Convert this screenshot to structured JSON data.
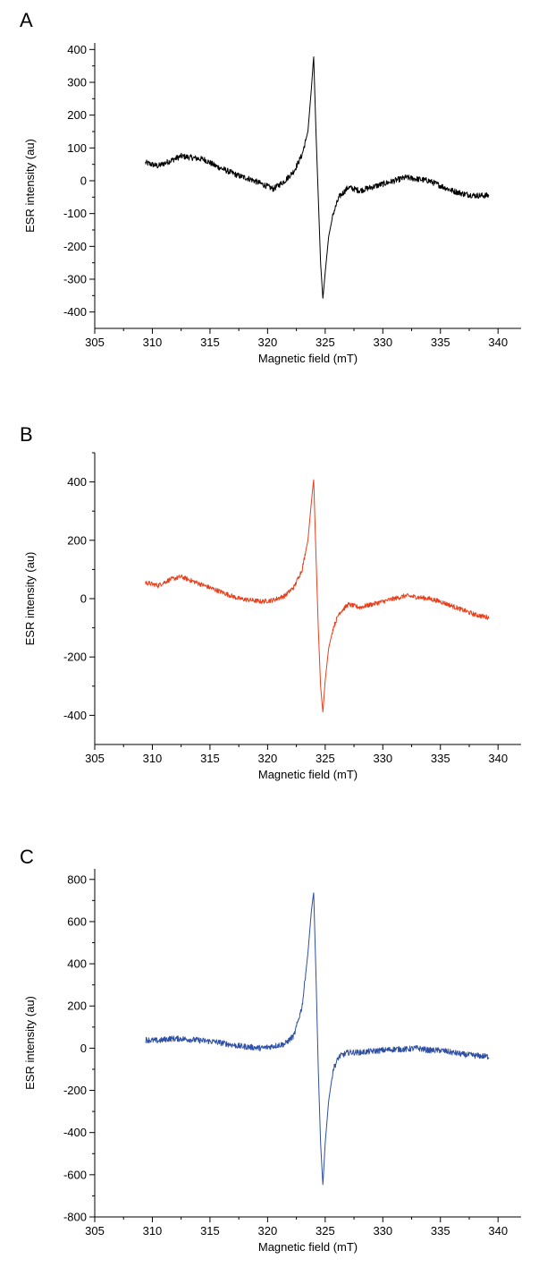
{
  "chart_data": [
    {
      "type": "line",
      "panel_label": "A",
      "xlabel": "Magnetic field (mT)",
      "ylabel": "ESR intensity (au)",
      "xlim": [
        305,
        342
      ],
      "ylim": [
        -450,
        420
      ],
      "xticks": [
        305,
        310,
        315,
        320,
        325,
        330,
        335,
        340
      ],
      "yticks": [
        -400,
        -300,
        -200,
        -100,
        0,
        100,
        200,
        300,
        400
      ],
      "grid": false,
      "series": [
        {
          "color": "#000000",
          "x": [
            309.4,
            310.5,
            311.5,
            312.5,
            313.5,
            314.5,
            315.5,
            316.5,
            317.5,
            318.5,
            319.5,
            320.5,
            321.5,
            322.3,
            323.0,
            323.5,
            323.8,
            324.0,
            324.2,
            324.4,
            324.6,
            324.8,
            325.0,
            325.3,
            325.7,
            326.2,
            327.0,
            328.0,
            329.0,
            330.0,
            331.0,
            332.0,
            333.0,
            334.0,
            335.0,
            336.0,
            337.0,
            338.0,
            339.2
          ],
          "y": [
            55,
            45,
            60,
            75,
            70,
            65,
            45,
            30,
            15,
            5,
            -10,
            -25,
            0,
            30,
            80,
            150,
            280,
            380,
            150,
            -50,
            -250,
            -360,
            -280,
            -170,
            -100,
            -50,
            -20,
            -30,
            -20,
            -10,
            0,
            10,
            5,
            0,
            -15,
            -30,
            -40,
            -45,
            -45
          ],
          "noise": 9
        }
      ]
    },
    {
      "type": "line",
      "panel_label": "B",
      "xlabel": "Magnetic field (mT)",
      "ylabel": "ESR intensity (au)",
      "xlim": [
        305,
        342
      ],
      "ylim": [
        -500,
        500
      ],
      "xticks": [
        305,
        310,
        315,
        320,
        325,
        330,
        335,
        340
      ],
      "yticks": [
        -400,
        -200,
        0,
        200,
        400
      ],
      "grid": false,
      "series": [
        {
          "color": "#e8401c",
          "x": [
            309.4,
            310.5,
            311.5,
            312.5,
            313.5,
            314.5,
            315.5,
            316.5,
            317.5,
            318.5,
            319.5,
            320.5,
            321.5,
            322.3,
            323.0,
            323.5,
            323.8,
            324.0,
            324.2,
            324.4,
            324.6,
            324.8,
            325.0,
            325.3,
            325.7,
            326.2,
            327.0,
            328.0,
            329.0,
            330.0,
            331.0,
            332.0,
            333.0,
            334.0,
            335.0,
            336.0,
            337.0,
            338.0,
            339.2
          ],
          "y": [
            55,
            45,
            65,
            75,
            60,
            45,
            30,
            15,
            0,
            -5,
            -10,
            -5,
            10,
            40,
            100,
            200,
            330,
            410,
            150,
            -100,
            -300,
            -390,
            -280,
            -170,
            -100,
            -50,
            -20,
            -30,
            -20,
            -10,
            0,
            10,
            5,
            0,
            -10,
            -25,
            -40,
            -55,
            -65
          ],
          "noise": 8
        }
      ]
    },
    {
      "type": "line",
      "panel_label": "C",
      "xlabel": "Magnetic field (mT)",
      "ylabel": "ESR intensity (au)",
      "xlim": [
        305,
        342
      ],
      "ylim": [
        -800,
        850
      ],
      "xticks": [
        305,
        310,
        315,
        320,
        325,
        330,
        335,
        340
      ],
      "yticks": [
        -800,
        -600,
        -400,
        -200,
        0,
        200,
        400,
        600,
        800
      ],
      "grid": false,
      "series": [
        {
          "color": "#2e4fa3",
          "x": [
            309.4,
            310.5,
            311.5,
            312.5,
            313.5,
            314.5,
            315.5,
            316.5,
            317.5,
            318.5,
            319.5,
            320.5,
            321.5,
            322.3,
            323.0,
            323.5,
            323.8,
            324.0,
            324.2,
            324.4,
            324.6,
            324.8,
            325.0,
            325.3,
            325.7,
            326.2,
            327.0,
            328.0,
            329.0,
            330.0,
            331.0,
            332.0,
            333.0,
            334.0,
            335.0,
            336.0,
            337.0,
            338.0,
            339.2
          ],
          "y": [
            40,
            35,
            45,
            45,
            40,
            35,
            30,
            20,
            10,
            5,
            0,
            10,
            20,
            60,
            200,
            450,
            650,
            740,
            350,
            -100,
            -450,
            -650,
            -450,
            -250,
            -100,
            -40,
            -20,
            -20,
            -15,
            -10,
            -5,
            -5,
            0,
            -10,
            -10,
            -20,
            -30,
            -35,
            -40
          ],
          "noise": 14
        }
      ]
    }
  ]
}
